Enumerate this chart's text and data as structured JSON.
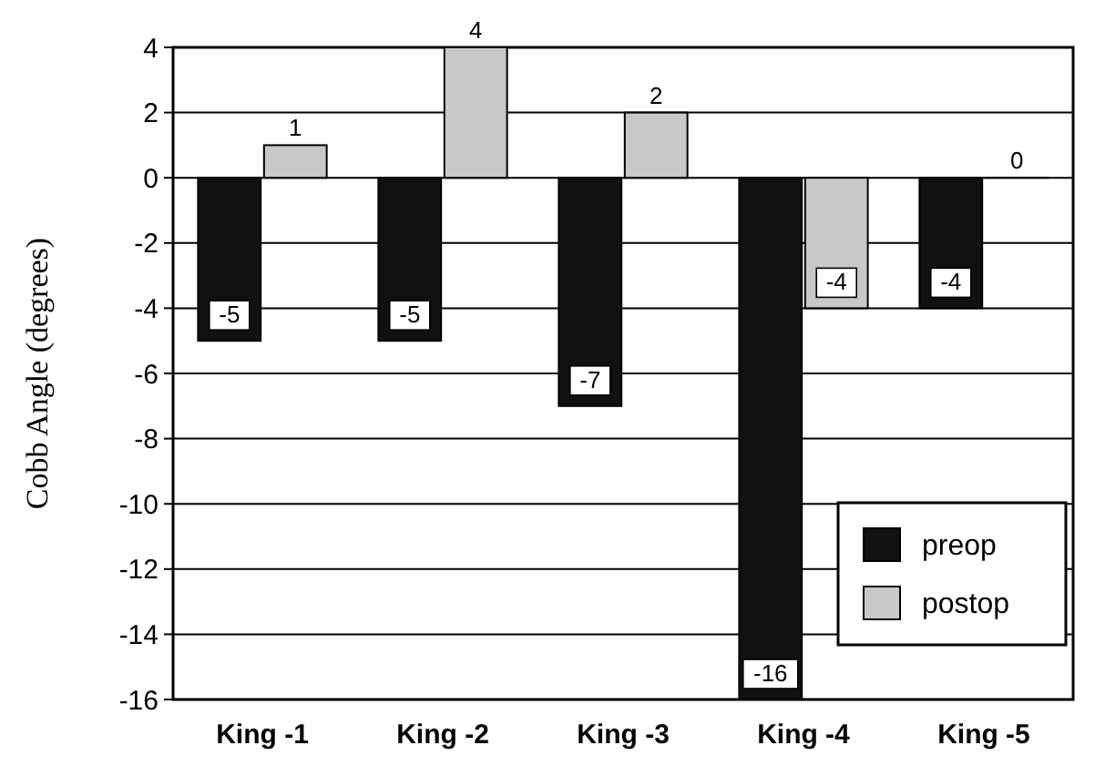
{
  "chart_data": {
    "type": "bar",
    "ylabel": "Cobb Angle (degrees)",
    "categories": [
      "King -1",
      "King -2",
      "King -3",
      "King -4",
      "King -5"
    ],
    "series": [
      {
        "name": "preop",
        "color": "#111111",
        "values": [
          -5,
          -5,
          -7,
          -16,
          -4
        ]
      },
      {
        "name": "postop",
        "color": "#c8c8c8",
        "values": [
          1,
          4,
          2,
          -4,
          0
        ]
      }
    ],
    "ylim": [
      -16,
      4
    ],
    "yticks": [
      -16,
      -14,
      -12,
      -10,
      -8,
      -6,
      -4,
      -2,
      0,
      2,
      4
    ],
    "grid": "y",
    "legend": "bottom right",
    "data_labels": true
  }
}
